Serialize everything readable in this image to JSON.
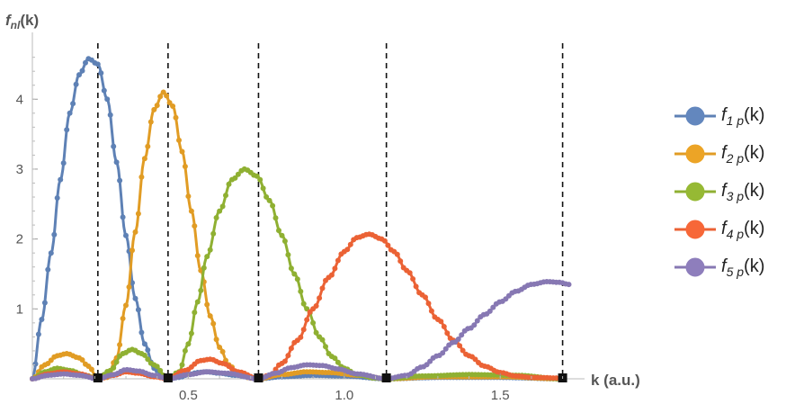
{
  "chart_data": {
    "type": "line",
    "ylabel": "f",
    "ylabel_sub": "nl",
    "ylabel_arg": "(k)",
    "xlabel": "k (a.u.)",
    "xlim": [
      0,
      1.73
    ],
    "ylim": [
      0,
      4.75
    ],
    "x_ticks": [
      0.5,
      1.0,
      1.5
    ],
    "x_tick_labels": [
      "0.5",
      "1.0",
      "1.5"
    ],
    "y_ticks": [
      1,
      2,
      3,
      4
    ],
    "y_tick_labels": [
      "1",
      "2",
      "3",
      "4"
    ],
    "vertical_lines_x": [
      0.21,
      0.435,
      0.725,
      1.135,
      1.7
    ],
    "legend_position": "right",
    "series": [
      {
        "name": "f 1 p (k)",
        "func": "f",
        "sub": "1 p",
        "arg": "(k)",
        "color": "#5E81B5",
        "points": [
          [
            0,
            0
          ],
          [
            0.03,
            0.85
          ],
          [
            0.06,
            1.8
          ],
          [
            0.09,
            2.85
          ],
          [
            0.12,
            3.8
          ],
          [
            0.15,
            4.35
          ],
          [
            0.18,
            4.58
          ],
          [
            0.21,
            4.5
          ],
          [
            0.24,
            4.0
          ],
          [
            0.27,
            3.1
          ],
          [
            0.3,
            2.05
          ],
          [
            0.33,
            1.15
          ],
          [
            0.36,
            0.5
          ],
          [
            0.39,
            0.15
          ],
          [
            0.42,
            0.03
          ],
          [
            0.435,
            0
          ],
          [
            0.47,
            0.02
          ],
          [
            0.5,
            0.06
          ],
          [
            0.53,
            0.09
          ],
          [
            0.56,
            0.1
          ],
          [
            0.6,
            0.08
          ],
          [
            0.65,
            0.05
          ],
          [
            0.7,
            0.02
          ],
          [
            0.725,
            0
          ],
          [
            0.8,
            0.03
          ],
          [
            0.9,
            0.05
          ],
          [
            1.0,
            0.04
          ],
          [
            1.135,
            0
          ],
          [
            1.3,
            0.02
          ],
          [
            1.5,
            0.02
          ],
          [
            1.7,
            0
          ]
        ]
      },
      {
        "name": "f 2 p (k)",
        "func": "f",
        "sub": "2 p",
        "arg": "(k)",
        "color": "#E19C24",
        "points": [
          [
            0,
            0
          ],
          [
            0.04,
            0.2
          ],
          [
            0.08,
            0.33
          ],
          [
            0.11,
            0.36
          ],
          [
            0.15,
            0.3
          ],
          [
            0.18,
            0.18
          ],
          [
            0.21,
            0
          ],
          [
            0.24,
            0.02
          ],
          [
            0.27,
            0.3
          ],
          [
            0.3,
            1.05
          ],
          [
            0.33,
            2.1
          ],
          [
            0.36,
            3.15
          ],
          [
            0.39,
            3.85
          ],
          [
            0.42,
            4.1
          ],
          [
            0.45,
            3.9
          ],
          [
            0.48,
            3.25
          ],
          [
            0.51,
            2.4
          ],
          [
            0.54,
            1.55
          ],
          [
            0.57,
            0.9
          ],
          [
            0.6,
            0.45
          ],
          [
            0.63,
            0.2
          ],
          [
            0.66,
            0.07
          ],
          [
            0.7,
            0.01
          ],
          [
            0.725,
            0
          ],
          [
            0.8,
            0.06
          ],
          [
            0.88,
            0.1
          ],
          [
            0.95,
            0.09
          ],
          [
            1.05,
            0.05
          ],
          [
            1.135,
            0
          ],
          [
            1.3,
            0.03
          ],
          [
            1.5,
            0.03
          ],
          [
            1.7,
            0
          ]
        ]
      },
      {
        "name": "f 3 p (k)",
        "func": "f",
        "sub": "3 p",
        "arg": "(k)",
        "color": "#8FB032",
        "points": [
          [
            0,
            0
          ],
          [
            0.04,
            0.1
          ],
          [
            0.08,
            0.15
          ],
          [
            0.12,
            0.12
          ],
          [
            0.17,
            0.05
          ],
          [
            0.21,
            0
          ],
          [
            0.25,
            0.12
          ],
          [
            0.29,
            0.36
          ],
          [
            0.32,
            0.42
          ],
          [
            0.35,
            0.36
          ],
          [
            0.39,
            0.2
          ],
          [
            0.435,
            0
          ],
          [
            0.47,
            0.1
          ],
          [
            0.5,
            0.5
          ],
          [
            0.53,
            1.1
          ],
          [
            0.56,
            1.75
          ],
          [
            0.6,
            2.4
          ],
          [
            0.64,
            2.85
          ],
          [
            0.68,
            3.0
          ],
          [
            0.72,
            2.9
          ],
          [
            0.76,
            2.55
          ],
          [
            0.8,
            2.05
          ],
          [
            0.84,
            1.5
          ],
          [
            0.88,
            1.0
          ],
          [
            0.92,
            0.6
          ],
          [
            0.96,
            0.32
          ],
          [
            1.0,
            0.15
          ],
          [
            1.04,
            0.06
          ],
          [
            1.1,
            0.01
          ],
          [
            1.135,
            0
          ],
          [
            1.25,
            0.04
          ],
          [
            1.4,
            0.06
          ],
          [
            1.55,
            0.05
          ],
          [
            1.7,
            0
          ]
        ]
      },
      {
        "name": "f 4 p (k)",
        "func": "f",
        "sub": "4 p",
        "arg": "(k)",
        "color": "#EB6235",
        "points": [
          [
            0,
            0
          ],
          [
            0.05,
            0.07
          ],
          [
            0.1,
            0.1
          ],
          [
            0.15,
            0.07
          ],
          [
            0.21,
            0
          ],
          [
            0.26,
            0.05
          ],
          [
            0.3,
            0.1
          ],
          [
            0.34,
            0.08
          ],
          [
            0.39,
            0.03
          ],
          [
            0.435,
            0
          ],
          [
            0.49,
            0.12
          ],
          [
            0.54,
            0.26
          ],
          [
            0.57,
            0.28
          ],
          [
            0.61,
            0.22
          ],
          [
            0.66,
            0.1
          ],
          [
            0.725,
            0
          ],
          [
            0.76,
            0.05
          ],
          [
            0.8,
            0.22
          ],
          [
            0.85,
            0.55
          ],
          [
            0.9,
            1.0
          ],
          [
            0.95,
            1.45
          ],
          [
            1.0,
            1.82
          ],
          [
            1.04,
            2.02
          ],
          [
            1.08,
            2.07
          ],
          [
            1.12,
            2.0
          ],
          [
            1.16,
            1.82
          ],
          [
            1.2,
            1.55
          ],
          [
            1.25,
            1.2
          ],
          [
            1.3,
            0.85
          ],
          [
            1.35,
            0.55
          ],
          [
            1.4,
            0.33
          ],
          [
            1.45,
            0.18
          ],
          [
            1.5,
            0.09
          ],
          [
            1.55,
            0.04
          ],
          [
            1.6,
            0.02
          ],
          [
            1.7,
            0.01
          ]
        ]
      },
      {
        "name": "f 5 p (k)",
        "func": "f",
        "sub": "5 p",
        "arg": "(k)",
        "color": "#8778B3",
        "points": [
          [
            0,
            0
          ],
          [
            0.05,
            0.05
          ],
          [
            0.1,
            0.07
          ],
          [
            0.15,
            0.05
          ],
          [
            0.21,
            0
          ],
          [
            0.26,
            0.06
          ],
          [
            0.3,
            0.13
          ],
          [
            0.34,
            0.11
          ],
          [
            0.39,
            0.05
          ],
          [
            0.435,
            0
          ],
          [
            0.5,
            0.06
          ],
          [
            0.56,
            0.1
          ],
          [
            0.62,
            0.08
          ],
          [
            0.725,
            0
          ],
          [
            0.78,
            0.08
          ],
          [
            0.83,
            0.16
          ],
          [
            0.88,
            0.2
          ],
          [
            0.93,
            0.19
          ],
          [
            0.98,
            0.14
          ],
          [
            1.04,
            0.07
          ],
          [
            1.135,
            0
          ],
          [
            1.2,
            0.05
          ],
          [
            1.25,
            0.17
          ],
          [
            1.3,
            0.33
          ],
          [
            1.35,
            0.52
          ],
          [
            1.4,
            0.72
          ],
          [
            1.45,
            0.92
          ],
          [
            1.5,
            1.1
          ],
          [
            1.55,
            1.25
          ],
          [
            1.6,
            1.35
          ],
          [
            1.65,
            1.39
          ],
          [
            1.69,
            1.38
          ],
          [
            1.72,
            1.35
          ]
        ]
      }
    ]
  }
}
